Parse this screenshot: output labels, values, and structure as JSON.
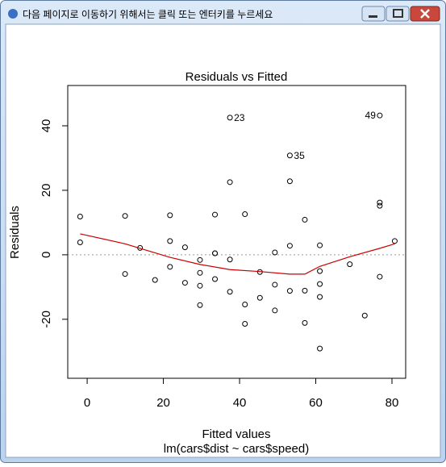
{
  "window": {
    "title": "다음 페이지로 이동하기 위해서는 클릭 또는 엔터키를 누르세요"
  },
  "chart_data": {
    "type": "scatter",
    "title": "Residuals vs Fitted",
    "x_label": "Fitted values",
    "subtitle": "lm(cars$dist ~ cars$speed)",
    "y_label": "Residuals",
    "x": [
      -1.85,
      -1.85,
      9.95,
      9.95,
      13.88,
      17.81,
      21.74,
      21.74,
      21.74,
      25.68,
      25.68,
      29.61,
      29.61,
      29.61,
      29.61,
      33.54,
      33.54,
      33.54,
      33.54,
      37.47,
      37.47,
      37.47,
      37.47,
      41.41,
      41.41,
      41.41,
      45.34,
      45.34,
      49.27,
      49.27,
      49.27,
      53.2,
      53.2,
      53.2,
      53.2,
      57.13,
      57.13,
      57.13,
      61.07,
      61.07,
      61.07,
      61.07,
      61.07,
      68.93,
      72.86,
      76.8,
      76.8,
      76.8,
      76.8,
      80.73
    ],
    "values": [
      3.85,
      11.85,
      -5.95,
      12.05,
      2.12,
      -7.81,
      -3.74,
      4.26,
      12.26,
      -8.68,
      2.32,
      -15.61,
      -9.61,
      -5.61,
      -1.61,
      -7.54,
      0.46,
      0.46,
      12.46,
      -11.47,
      -1.47,
      22.53,
      42.53,
      -21.41,
      -15.41,
      12.59,
      -13.34,
      -5.34,
      -17.27,
      -9.27,
      0.73,
      -11.2,
      2.8,
      22.8,
      30.8,
      -21.13,
      -11.13,
      10.87,
      -29.07,
      -13.07,
      -9.07,
      -5.07,
      2.93,
      -2.93,
      -18.86,
      -6.8,
      15.2,
      16.2,
      43.2,
      4.27
    ],
    "labels": [
      null,
      null,
      null,
      null,
      null,
      null,
      null,
      null,
      null,
      null,
      null,
      null,
      null,
      null,
      null,
      null,
      null,
      null,
      null,
      null,
      null,
      null,
      "23",
      null,
      null,
      null,
      null,
      null,
      null,
      null,
      null,
      null,
      null,
      null,
      "35",
      null,
      null,
      null,
      null,
      null,
      null,
      null,
      null,
      null,
      null,
      null,
      null,
      null,
      "49",
      null
    ],
    "color": "#000000",
    "smooth": {
      "x": [
        -1.85,
        9.95,
        21.74,
        29.61,
        37.47,
        45.34,
        53.2,
        57.13,
        61.07,
        68.93,
        76.8,
        80.73
      ],
      "values": [
        6.5,
        3.4,
        -0.8,
        -3,
        -4.6,
        -5.2,
        -6,
        -6,
        -3.6,
        -0.6,
        2,
        3.4
      ],
      "color": "#cc0000"
    },
    "reference_line": {
      "value": 0,
      "color": "#999999"
    },
    "xlim": [
      -5.1,
      83.6
    ],
    "xticks": [
      0,
      20,
      40,
      60,
      80
    ],
    "ylim": [
      -38.3,
      52.5
    ],
    "yticks": [
      -20,
      0,
      20,
      40
    ]
  }
}
